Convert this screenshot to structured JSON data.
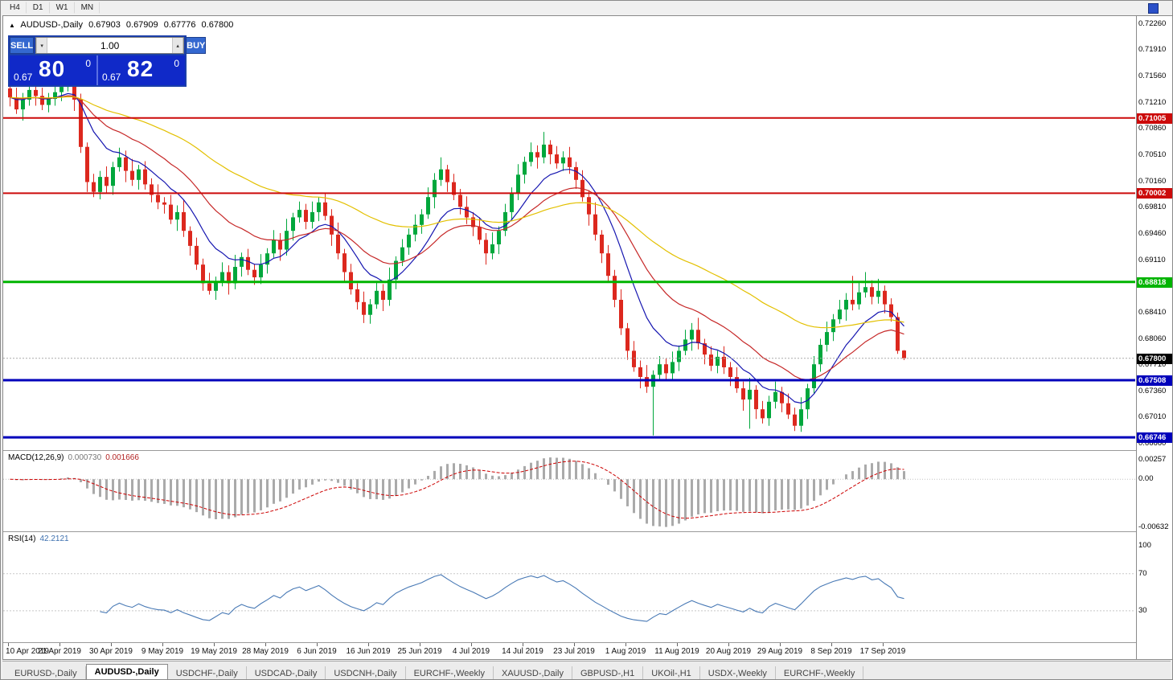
{
  "toolbar": {
    "timeframes": [
      "H4",
      "D1",
      "W1",
      "MN"
    ]
  },
  "icons": {
    "volume_down": "▾",
    "volume_up": "▴",
    "chart_marker": "▲"
  },
  "chart_header": {
    "symbol": "AUDUSD-,Daily",
    "open": "0.67903",
    "high": "0.67909",
    "low": "0.67776",
    "close": "0.67800"
  },
  "trade_panel": {
    "sell_label": "SELL",
    "buy_label": "BUY",
    "volume": "1.00",
    "sell_price": {
      "prefix": "0.67",
      "pips": "80",
      "point": "0"
    },
    "buy_price": {
      "prefix": "0.67",
      "pips": "82",
      "point": "0"
    }
  },
  "chart_data": {
    "type": "candlestick",
    "symbol": "AUDUSD",
    "timeframe": "Daily",
    "y_range": {
      "min": 0.66575,
      "max": 0.72365
    },
    "y_ticks": [
      0.6666,
      0.6701,
      0.6736,
      0.6771,
      0.6806,
      0.6841,
      0.6876,
      0.6911,
      0.6946,
      0.6981,
      0.7016,
      0.7051,
      0.7086,
      0.7121,
      0.7156,
      0.7191,
      0.7226
    ],
    "ma_lines": [
      {
        "name": "ma-fast-blue",
        "period": 10,
        "color": "#1515b0"
      },
      {
        "name": "ma-medium-red",
        "period": 22,
        "color": "#c62828"
      },
      {
        "name": "ma-slow-yellow",
        "period": 55,
        "color": "#e3c000"
      }
    ],
    "h_lines": [
      {
        "value": 0.71005,
        "label": "0.71005",
        "color": "#cc0a0a",
        "width": 2
      },
      {
        "value": 0.70002,
        "label": "0.70002",
        "color": "#cc0a0a",
        "width": 2
      },
      {
        "value": 0.68818,
        "label": "0.68818",
        "color": "#00b400",
        "width": 3
      },
      {
        "value": 0.67508,
        "label": "0.67508",
        "color": "#0000bb",
        "width": 3
      },
      {
        "value": 0.66746,
        "label": "0.66746",
        "color": "#0000bb",
        "width": 3
      }
    ],
    "bid": {
      "value": 0.678,
      "label": "0.67800"
    },
    "x_label_step": 8,
    "x_labels": [
      "10 Apr 2019",
      "21 Apr 2019",
      "30 Apr 2019",
      "9 May 2019",
      "19 May 2019",
      "28 May 2019",
      "6 Jun 2019",
      "16 Jun 2019",
      "25 Jun 2019",
      "4 Jul 2019",
      "14 Jul 2019",
      "23 Jul 2019",
      "1 Aug 2019",
      "11 Aug 2019",
      "20 Aug 2019",
      "29 Aug 2019",
      "8 Sep 2019",
      "17 Sep 2019"
    ],
    "candles": [
      [
        0.714,
        0.7147,
        0.7116,
        0.7128
      ],
      [
        0.7128,
        0.7141,
        0.7106,
        0.7112
      ],
      [
        0.7112,
        0.7134,
        0.7097,
        0.7125
      ],
      [
        0.7125,
        0.7154,
        0.7117,
        0.7138
      ],
      [
        0.7138,
        0.7144,
        0.7117,
        0.713
      ],
      [
        0.713,
        0.7141,
        0.7111,
        0.7118
      ],
      [
        0.7118,
        0.7134,
        0.7108,
        0.7126
      ],
      [
        0.7126,
        0.7149,
        0.7117,
        0.7135
      ],
      [
        0.7135,
        0.7149,
        0.7123,
        0.7142
      ],
      [
        0.7142,
        0.7152,
        0.7136,
        0.7146
      ],
      [
        0.7146,
        0.7151,
        0.711,
        0.7125
      ],
      [
        0.7125,
        0.7133,
        0.7054,
        0.7062
      ],
      [
        0.7062,
        0.7068,
        0.7002,
        0.7015
      ],
      [
        0.7015,
        0.7026,
        0.6995,
        0.7002
      ],
      [
        0.7002,
        0.703,
        0.6992,
        0.7022
      ],
      [
        0.7022,
        0.7036,
        0.7001,
        0.701
      ],
      [
        0.701,
        0.7042,
        0.6998,
        0.7035
      ],
      [
        0.7035,
        0.7061,
        0.7029,
        0.7048
      ],
      [
        0.7048,
        0.7057,
        0.7015,
        0.703
      ],
      [
        0.703,
        0.7046,
        0.701,
        0.7018
      ],
      [
        0.7018,
        0.7038,
        0.7005,
        0.7032
      ],
      [
        0.7032,
        0.7043,
        0.7005,
        0.7012
      ],
      [
        0.7012,
        0.702,
        0.6988,
        0.6998
      ],
      [
        0.6998,
        0.7012,
        0.6979,
        0.6988
      ],
      [
        0.6988,
        0.6995,
        0.6973,
        0.6985
      ],
      [
        0.6985,
        0.6998,
        0.6959,
        0.6965
      ],
      [
        0.6965,
        0.6984,
        0.695,
        0.6975
      ],
      [
        0.6975,
        0.6991,
        0.6942,
        0.695
      ],
      [
        0.695,
        0.6956,
        0.6917,
        0.693
      ],
      [
        0.693,
        0.6941,
        0.6898,
        0.6905
      ],
      [
        0.6905,
        0.6913,
        0.687,
        0.688
      ],
      [
        0.688,
        0.6894,
        0.6865,
        0.687
      ],
      [
        0.687,
        0.6889,
        0.6858,
        0.6882
      ],
      [
        0.6882,
        0.6908,
        0.6876,
        0.6895
      ],
      [
        0.6895,
        0.6904,
        0.6865,
        0.688
      ],
      [
        0.688,
        0.6918,
        0.6872,
        0.6902
      ],
      [
        0.6902,
        0.6921,
        0.6889,
        0.6915
      ],
      [
        0.6915,
        0.6926,
        0.6891,
        0.6898
      ],
      [
        0.6898,
        0.6906,
        0.6878,
        0.6888
      ],
      [
        0.6888,
        0.6919,
        0.6879,
        0.6905
      ],
      [
        0.6905,
        0.6927,
        0.6893,
        0.692
      ],
      [
        0.692,
        0.6951,
        0.6914,
        0.6938
      ],
      [
        0.6938,
        0.6947,
        0.691,
        0.6925
      ],
      [
        0.6925,
        0.6966,
        0.6917,
        0.695
      ],
      [
        0.695,
        0.6974,
        0.6937,
        0.6968
      ],
      [
        0.6968,
        0.6989,
        0.6961,
        0.6978
      ],
      [
        0.6978,
        0.6986,
        0.6952,
        0.6962
      ],
      [
        0.6962,
        0.6989,
        0.6953,
        0.6975
      ],
      [
        0.6975,
        0.6995,
        0.6963,
        0.6988
      ],
      [
        0.6988,
        0.7001,
        0.6964,
        0.697
      ],
      [
        0.697,
        0.6979,
        0.693,
        0.6945
      ],
      [
        0.6945,
        0.6961,
        0.6912,
        0.692
      ],
      [
        0.692,
        0.6926,
        0.6882,
        0.6895
      ],
      [
        0.6895,
        0.6906,
        0.6865,
        0.6872
      ],
      [
        0.6872,
        0.688,
        0.6845,
        0.6855
      ],
      [
        0.6855,
        0.6869,
        0.6827,
        0.6838
      ],
      [
        0.6838,
        0.6859,
        0.6826,
        0.6852
      ],
      [
        0.6852,
        0.6883,
        0.6846,
        0.687
      ],
      [
        0.687,
        0.6879,
        0.6843,
        0.6858
      ],
      [
        0.6858,
        0.6901,
        0.685,
        0.6885
      ],
      [
        0.6885,
        0.6916,
        0.6872,
        0.691
      ],
      [
        0.691,
        0.6939,
        0.6903,
        0.6928
      ],
      [
        0.6928,
        0.6953,
        0.6918,
        0.6945
      ],
      [
        0.6945,
        0.6972,
        0.6936,
        0.6958
      ],
      [
        0.6958,
        0.6979,
        0.6946,
        0.6972
      ],
      [
        0.6972,
        0.7008,
        0.6966,
        0.6995
      ],
      [
        0.6995,
        0.7027,
        0.698,
        0.7018
      ],
      [
        0.7018,
        0.7048,
        0.701,
        0.7032
      ],
      [
        0.7032,
        0.7038,
        0.7002,
        0.7015
      ],
      [
        0.7015,
        0.7026,
        0.6991,
        0.6998
      ],
      [
        0.6998,
        0.7006,
        0.6972,
        0.6982
      ],
      [
        0.6982,
        0.6996,
        0.6959,
        0.6968
      ],
      [
        0.6968,
        0.6975,
        0.6943,
        0.6955
      ],
      [
        0.6955,
        0.6968,
        0.6932,
        0.6938
      ],
      [
        0.6938,
        0.6947,
        0.6905,
        0.692
      ],
      [
        0.692,
        0.6948,
        0.6912,
        0.6932
      ],
      [
        0.6932,
        0.6956,
        0.6919,
        0.695
      ],
      [
        0.695,
        0.6986,
        0.6943,
        0.6975
      ],
      [
        0.6975,
        0.7008,
        0.6965,
        0.7
      ],
      [
        0.7,
        0.7039,
        0.6991,
        0.7025
      ],
      [
        0.7025,
        0.7049,
        0.7013,
        0.7042
      ],
      [
        0.7042,
        0.7068,
        0.7036,
        0.7055
      ],
      [
        0.7055,
        0.7064,
        0.7033,
        0.7048
      ],
      [
        0.7048,
        0.7082,
        0.704,
        0.7065
      ],
      [
        0.7065,
        0.7071,
        0.7039,
        0.7052
      ],
      [
        0.7052,
        0.7063,
        0.7033,
        0.704
      ],
      [
        0.704,
        0.7056,
        0.703,
        0.7048
      ],
      [
        0.7048,
        0.7062,
        0.7026,
        0.7035
      ],
      [
        0.7035,
        0.7042,
        0.7006,
        0.7018
      ],
      [
        0.7018,
        0.7031,
        0.6989,
        0.6995
      ],
      [
        0.6995,
        0.7004,
        0.6957,
        0.6972
      ],
      [
        0.6972,
        0.6988,
        0.6937,
        0.6945
      ],
      [
        0.6945,
        0.6951,
        0.6907,
        0.692
      ],
      [
        0.692,
        0.6931,
        0.6883,
        0.689
      ],
      [
        0.689,
        0.6898,
        0.6848,
        0.6858
      ],
      [
        0.6858,
        0.6872,
        0.6811,
        0.682
      ],
      [
        0.682,
        0.6827,
        0.6778,
        0.679
      ],
      [
        0.679,
        0.6803,
        0.6762,
        0.6768
      ],
      [
        0.6768,
        0.6777,
        0.674,
        0.6755
      ],
      [
        0.6755,
        0.6771,
        0.6734,
        0.6742
      ],
      [
        0.6742,
        0.6764,
        0.6677,
        0.6758
      ],
      [
        0.6758,
        0.6783,
        0.6751,
        0.6772
      ],
      [
        0.6772,
        0.678,
        0.675,
        0.676
      ],
      [
        0.676,
        0.6789,
        0.6751,
        0.6775
      ],
      [
        0.6775,
        0.6797,
        0.6763,
        0.679
      ],
      [
        0.679,
        0.6818,
        0.6784,
        0.6805
      ],
      [
        0.6805,
        0.6827,
        0.679,
        0.6818
      ],
      [
        0.6818,
        0.6834,
        0.6792,
        0.68
      ],
      [
        0.68,
        0.6806,
        0.6772,
        0.6785
      ],
      [
        0.6785,
        0.6796,
        0.6763,
        0.677
      ],
      [
        0.677,
        0.679,
        0.676,
        0.6782
      ],
      [
        0.6782,
        0.6796,
        0.6759,
        0.6768
      ],
      [
        0.6768,
        0.6775,
        0.6743,
        0.6755
      ],
      [
        0.6755,
        0.6768,
        0.6734,
        0.674
      ],
      [
        0.674,
        0.6749,
        0.671,
        0.6725
      ],
      [
        0.6725,
        0.6754,
        0.6686,
        0.6738
      ],
      [
        0.6738,
        0.6744,
        0.6699,
        0.6712
      ],
      [
        0.6712,
        0.6723,
        0.6693,
        0.67
      ],
      [
        0.67,
        0.673,
        0.669,
        0.6722
      ],
      [
        0.6722,
        0.6749,
        0.6713,
        0.6735
      ],
      [
        0.6735,
        0.6742,
        0.6708,
        0.672
      ],
      [
        0.672,
        0.6733,
        0.6699,
        0.6705
      ],
      [
        0.6705,
        0.6714,
        0.6683,
        0.669
      ],
      [
        0.669,
        0.6728,
        0.6682,
        0.6712
      ],
      [
        0.6712,
        0.6746,
        0.6699,
        0.674
      ],
      [
        0.674,
        0.6783,
        0.6733,
        0.6772
      ],
      [
        0.6772,
        0.6806,
        0.6762,
        0.6798
      ],
      [
        0.6798,
        0.6829,
        0.6789,
        0.6815
      ],
      [
        0.6815,
        0.6839,
        0.6803,
        0.6832
      ],
      [
        0.6832,
        0.6858,
        0.6826,
        0.6845
      ],
      [
        0.6845,
        0.6867,
        0.683,
        0.6858
      ],
      [
        0.6858,
        0.689,
        0.6844,
        0.6852
      ],
      [
        0.6852,
        0.6882,
        0.6845,
        0.6868
      ],
      [
        0.6868,
        0.6895,
        0.6861,
        0.6875
      ],
      [
        0.6875,
        0.6884,
        0.6852,
        0.6862
      ],
      [
        0.6862,
        0.6886,
        0.6853,
        0.687
      ],
      [
        0.687,
        0.6877,
        0.684,
        0.6852
      ],
      [
        0.6852,
        0.686,
        0.6829,
        0.6835
      ],
      [
        0.6835,
        0.6841,
        0.6786,
        0.679
      ],
      [
        0.67903,
        0.67909,
        0.67776,
        0.678
      ]
    ]
  },
  "macd": {
    "label": "MACD(12,26,9)",
    "main_value": "0.000730",
    "signal_value": "0.001666",
    "fast": 12,
    "slow": 26,
    "signal": 9,
    "scale": {
      "min": -0.00684,
      "max": 0.00372
    },
    "ticks": [
      {
        "value": 0.00257,
        "label": "0.00257"
      },
      {
        "value": 0,
        "label": "0.00"
      },
      {
        "value": -0.00632,
        "label": "-0.00632"
      }
    ]
  },
  "rsi": {
    "label": "RSI(14)",
    "value": "42.2121",
    "period": 14,
    "levels": [
      70,
      30
    ],
    "scale": {
      "min": -4,
      "max": 115
    },
    "ticks": [
      {
        "value": 100,
        "label": "100"
      },
      {
        "value": 70,
        "label": "70"
      },
      {
        "value": 30,
        "label": "30"
      }
    ]
  },
  "tabs": [
    {
      "label": "EURUSD-,Daily",
      "active": false
    },
    {
      "label": "AUDUSD-,Daily",
      "active": true
    },
    {
      "label": "USDCHF-,Daily",
      "active": false
    },
    {
      "label": "USDCAD-,Daily",
      "active": false
    },
    {
      "label": "USDCNH-,Daily",
      "active": false
    },
    {
      "label": "EURCHF-,Weekly",
      "active": false
    },
    {
      "label": "XAUUSD-,Daily",
      "active": false
    },
    {
      "label": "GBPUSD-,H1",
      "active": false
    },
    {
      "label": "UKOil-,H1",
      "active": false
    },
    {
      "label": "USDX-,Weekly",
      "active": false
    },
    {
      "label": "EURCHF-,Weekly",
      "active": false
    }
  ],
  "colors": {
    "up": "#00a73c",
    "down": "#dc281e",
    "macd_hist": "#aaaaaa",
    "macd_signal": "#cc0000",
    "rsi_line": "#4879b5",
    "level_line": "#c8c8c8",
    "bid_line": "#aaaaaa",
    "last_price_bg": "#000000"
  }
}
